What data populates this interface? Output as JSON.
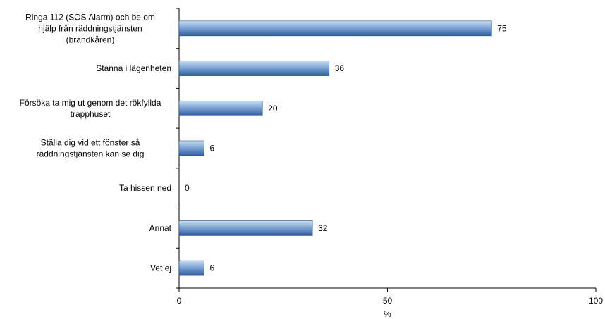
{
  "chart_data": {
    "type": "bar",
    "orientation": "horizontal",
    "categories": [
      [
        "Ringa 112 (SOS Alarm) och be om",
        "hjälp från räddningstjänsten",
        "(brandkåren)"
      ],
      [
        "Stanna i lägenheten"
      ],
      [
        "Försöka ta mig ut genom det rökfyllda",
        "trapphuset"
      ],
      [
        "Ställa dig vid ett fönster så",
        "räddningstjänsten kan se dig"
      ],
      [
        "Ta hissen ned"
      ],
      [
        "Annat"
      ],
      [
        "Vet ej"
      ]
    ],
    "values": [
      75,
      36,
      20,
      6,
      0,
      32,
      6
    ],
    "data_labels": [
      "75",
      "36",
      "20",
      "6",
      "0",
      "32",
      "6"
    ],
    "xlabel": "%",
    "xlim": [
      0,
      100
    ],
    "xticks": [
      "0",
      "50",
      "100"
    ],
    "grid": false,
    "legend": "none",
    "colors": {
      "bar_light": "#c9dcf2",
      "bar_mid": "#7fa6d6",
      "bar_dark": "#2f5c9a",
      "bar_border": "#27508a",
      "axis": "#000000"
    }
  }
}
